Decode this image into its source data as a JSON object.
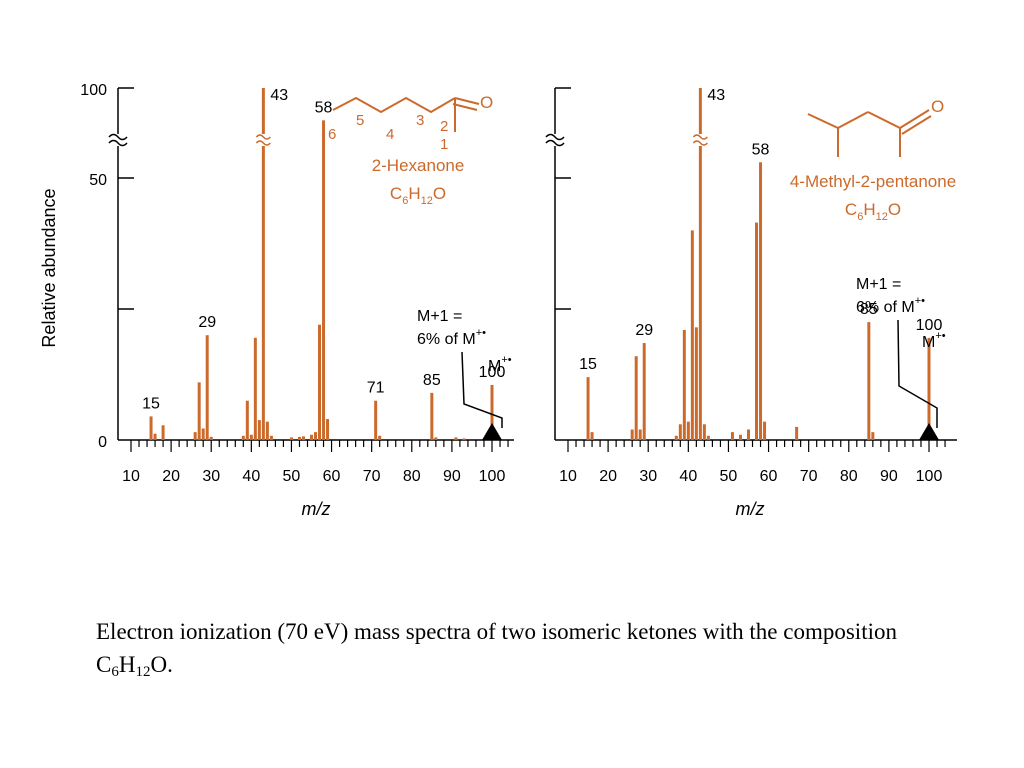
{
  "colors": {
    "bar": "#cc6a2c",
    "structure": "#cc6a2c",
    "axis": "#000000"
  },
  "caption": {
    "pre": "Electron ionization (70 eV) mass spectra of two isomeric ketones with the composition C",
    "sub1": "6",
    "mid": "H",
    "sub2": "12",
    "post": "O."
  },
  "chart_data": [
    {
      "type": "bar",
      "xlabel": "m/z",
      "ylabel": "Relative abundance",
      "y_ticks": [
        "0",
        "50",
        "100"
      ],
      "x_ticks": [
        "10",
        "20",
        "30",
        "40",
        "50",
        "60",
        "70",
        "80",
        "90",
        "100"
      ],
      "xlim": [
        8,
        106
      ],
      "y_axis_break": "≈",
      "compound": {
        "name": "2-Hexanone",
        "formula_parts": [
          "C",
          "6",
          "H",
          "12",
          "O"
        ],
        "carbon_numbers": [
          "6",
          "5",
          "4",
          "3",
          "2",
          "1"
        ],
        "oxygen": "O"
      },
      "annotation": {
        "line1": "M+1 =",
        "line2": "6% of M",
        "sup": "+•"
      },
      "molecular_ion": {
        "label": "M",
        "sup": "+•",
        "mz": 100
      },
      "peak_labels": [
        {
          "mz": 15,
          "text": "15"
        },
        {
          "mz": 29,
          "text": "29"
        },
        {
          "mz": 43,
          "text": "43"
        },
        {
          "mz": 58,
          "text": "58"
        },
        {
          "mz": 71,
          "text": "71"
        },
        {
          "mz": 85,
          "text": "85"
        },
        {
          "mz": 100,
          "text": "100"
        }
      ],
      "peaks": [
        {
          "mz": 15,
          "value": 4.5
        },
        {
          "mz": 16,
          "value": 1.2
        },
        {
          "mz": 18,
          "value": 2.8
        },
        {
          "mz": 26,
          "value": 1.5
        },
        {
          "mz": 27,
          "value": 11.0
        },
        {
          "mz": 28,
          "value": 2.2
        },
        {
          "mz": 29,
          "value": 20.0
        },
        {
          "mz": 30,
          "value": 0.6
        },
        {
          "mz": 38,
          "value": 0.8
        },
        {
          "mz": 39,
          "value": 7.5
        },
        {
          "mz": 40,
          "value": 1.0
        },
        {
          "mz": 41,
          "value": 19.5
        },
        {
          "mz": 42,
          "value": 3.8
        },
        {
          "mz": 43,
          "value": 100
        },
        {
          "mz": 44,
          "value": 3.5
        },
        {
          "mz": 45,
          "value": 0.8
        },
        {
          "mz": 50,
          "value": 0.5
        },
        {
          "mz": 52,
          "value": 0.6
        },
        {
          "mz": 53,
          "value": 0.7
        },
        {
          "mz": 55,
          "value": 1.0
        },
        {
          "mz": 56,
          "value": 1.5
        },
        {
          "mz": 57,
          "value": 22.0
        },
        {
          "mz": 58,
          "value": 61.0
        },
        {
          "mz": 59,
          "value": 4.0
        },
        {
          "mz": 71,
          "value": 7.5
        },
        {
          "mz": 72,
          "value": 0.8
        },
        {
          "mz": 85,
          "value": 9.0
        },
        {
          "mz": 86,
          "value": 0.5
        },
        {
          "mz": 91,
          "value": 0.5
        },
        {
          "mz": 93,
          "value": 0.3
        },
        {
          "mz": 100,
          "value": 10.5
        }
      ]
    },
    {
      "type": "bar",
      "xlabel": "m/z",
      "x_ticks": [
        "10",
        "20",
        "30",
        "40",
        "50",
        "60",
        "70",
        "80",
        "90",
        "100"
      ],
      "xlim": [
        8,
        106
      ],
      "y_axis_break": "≈",
      "compound": {
        "name": "4-Methyl-2-pentanone",
        "formula_parts": [
          "C",
          "6",
          "H",
          "12",
          "O"
        ],
        "oxygen": "O"
      },
      "annotation": {
        "line1": "M+1 =",
        "line2": "6% of M",
        "sup": "+•"
      },
      "molecular_ion": {
        "label": "M",
        "sup": "+•",
        "mz": 100
      },
      "peak_labels": [
        {
          "mz": 15,
          "text": "15"
        },
        {
          "mz": 29,
          "text": "29"
        },
        {
          "mz": 43,
          "text": "43"
        },
        {
          "mz": 58,
          "text": "58"
        },
        {
          "mz": 85,
          "text": "85"
        },
        {
          "mz": 100,
          "text": "100"
        }
      ],
      "peaks": [
        {
          "mz": 15,
          "value": 12.0
        },
        {
          "mz": 16,
          "value": 1.5
        },
        {
          "mz": 26,
          "value": 2.0
        },
        {
          "mz": 27,
          "value": 16.0
        },
        {
          "mz": 28,
          "value": 2.0
        },
        {
          "mz": 29,
          "value": 18.5
        },
        {
          "mz": 37,
          "value": 0.8
        },
        {
          "mz": 38,
          "value": 3.0
        },
        {
          "mz": 39,
          "value": 21.0
        },
        {
          "mz": 40,
          "value": 3.5
        },
        {
          "mz": 41,
          "value": 40.0
        },
        {
          "mz": 42,
          "value": 21.5
        },
        {
          "mz": 43,
          "value": 100
        },
        {
          "mz": 44,
          "value": 3.0
        },
        {
          "mz": 45,
          "value": 0.8
        },
        {
          "mz": 51,
          "value": 1.5
        },
        {
          "mz": 53,
          "value": 1.0
        },
        {
          "mz": 55,
          "value": 2.0
        },
        {
          "mz": 57,
          "value": 41.5
        },
        {
          "mz": 58,
          "value": 53.0
        },
        {
          "mz": 59,
          "value": 3.5
        },
        {
          "mz": 67,
          "value": 2.5
        },
        {
          "mz": 85,
          "value": 22.5
        },
        {
          "mz": 86,
          "value": 1.5
        },
        {
          "mz": 100,
          "value": 19.5
        }
      ]
    }
  ]
}
